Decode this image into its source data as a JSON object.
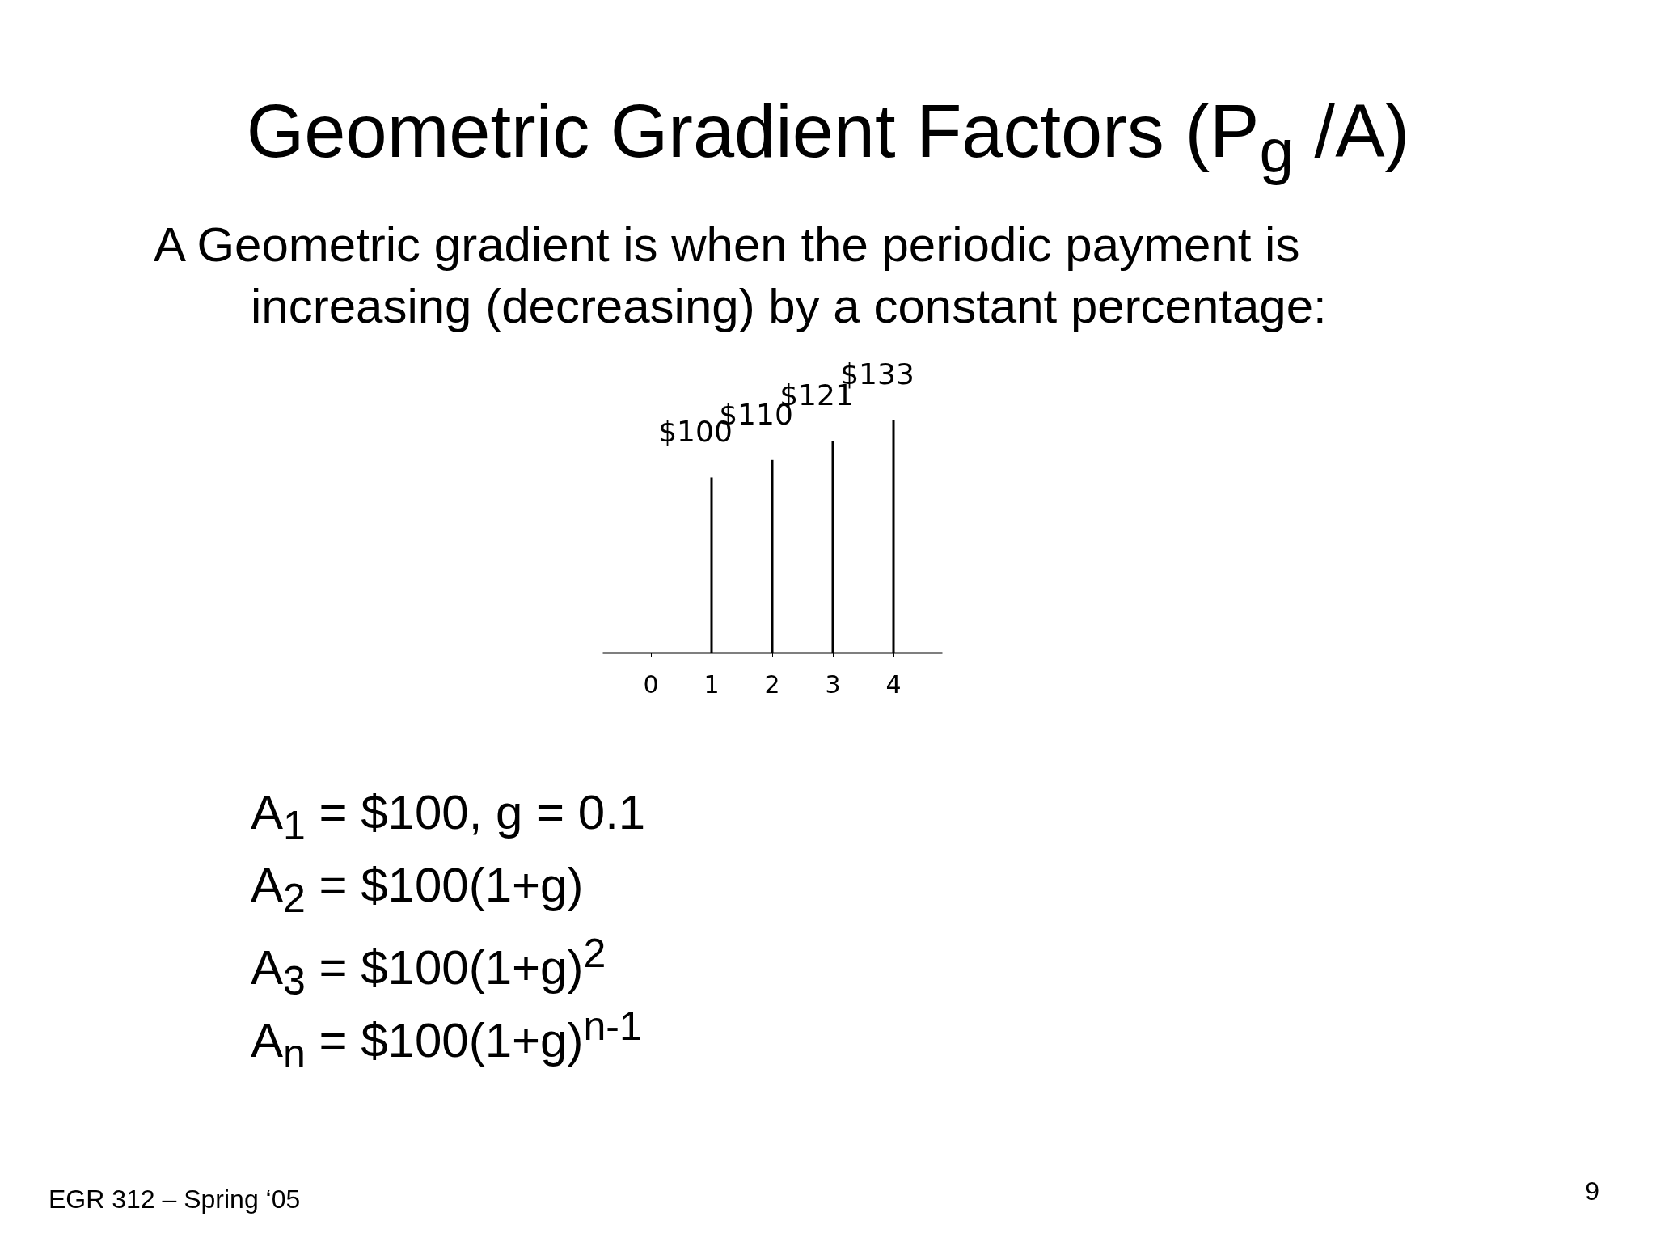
{
  "chart_data": {
    "type": "bar",
    "title": "Geometric Gradient Factors (P$_{g}$ /A)",
    "subtitle": "A Geometric gradient is when the periodic payment is increasing (decreasing) by a constant percentage:",
    "categories": [
      "0",
      "1",
      "2",
      "3",
      "4"
    ],
    "series": [
      {
        "color": "#000000",
        "values": [
          null,
          100,
          110,
          121,
          133
        ],
        "value_labels": [
          null,
          "$100",
          "$110",
          "$121",
          "$133"
        ]
      }
    ],
    "grid": false,
    "tick_labels": "x",
    "annotations": [
      "A$_{1}$ = $100, g = 0.1",
      "A$_{2}$ = $100(1+g)",
      "A$_{3}$ = $100(1+g)$^{2}$",
      "A$_{n}$ = $100(1+g)$^{n-1}$",
      "EGR 312 – Spring ‘05",
      "9"
    ]
  }
}
